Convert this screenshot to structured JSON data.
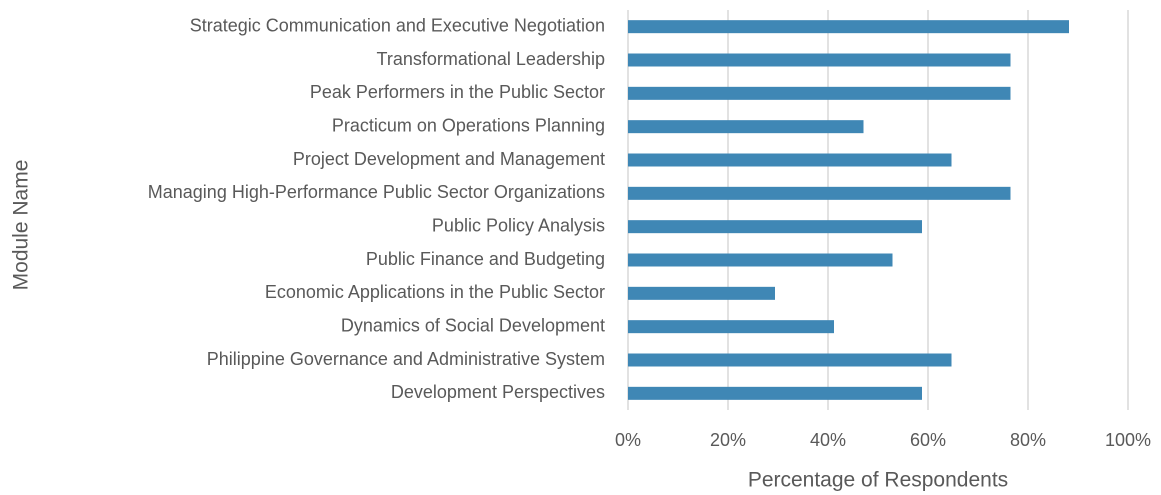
{
  "chart_data": {
    "type": "hbar",
    "xlabel": "Percentage of Respondents",
    "ylabel": "Module Name",
    "categories": [
      "Strategic Communication and Executive Negotiation",
      "Transformational Leadership",
      "Peak Performers in the Public Sector",
      "Practicum on Operations Planning",
      "Project Development and Management",
      "Managing High-Performance Public Sector Organizations",
      "Public Policy Analysis",
      "Public Finance and Budgeting",
      "Economic Applications in the Public Sector",
      "Dynamics of Social Development",
      "Philippine Governance and Administrative System",
      "Development Perspectives"
    ],
    "values": [
      88.2,
      76.5,
      76.5,
      47.1,
      64.7,
      76.5,
      58.8,
      52.9,
      29.4,
      41.2,
      64.7,
      58.8
    ],
    "color": "#3f87b5",
    "xlim": [
      0,
      100
    ],
    "xticks": [
      {
        "value": 0,
        "label": "0%"
      },
      {
        "value": 20,
        "label": "20%"
      },
      {
        "value": 40,
        "label": "40%"
      },
      {
        "value": 60,
        "label": "60%"
      },
      {
        "value": 80,
        "label": "80%"
      },
      {
        "value": 100,
        "label": "100%"
      }
    ],
    "grid": true
  }
}
